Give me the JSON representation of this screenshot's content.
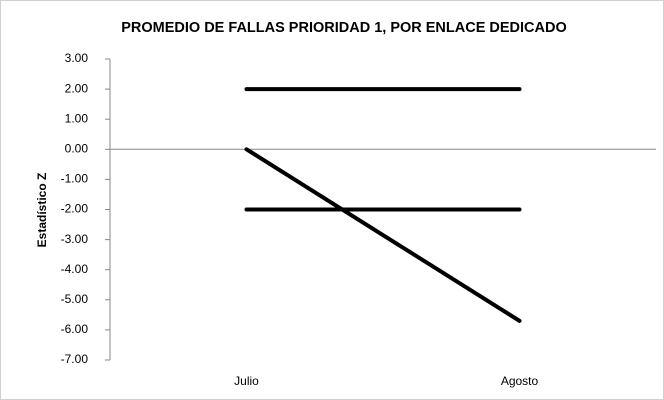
{
  "chart_data": {
    "type": "line",
    "title": "PROMEDIO DE FALLAS PRIORIDAD 1, POR ENLACE DEDICADO",
    "y_label": "Estadístico Z",
    "categories": [
      "Julio",
      "Agosto"
    ],
    "series": [
      {
        "color": "#000000",
        "values": [
          2,
          2
        ]
      },
      {
        "color": "#000000",
        "values": [
          -2,
          -2
        ]
      },
      {
        "color": "#000000",
        "values": [
          0,
          -5.7
        ]
      }
    ],
    "ylim": [
      -7,
      3
    ],
    "yticks": [
      {
        "value": 3,
        "label": "3.00"
      },
      {
        "value": 2,
        "label": "2.00"
      },
      {
        "value": 1,
        "label": "1.00"
      },
      {
        "value": 0,
        "label": "0.00"
      },
      {
        "value": -1,
        "label": "-1.00"
      },
      {
        "value": -2,
        "label": "-2.00"
      },
      {
        "value": -3,
        "label": "-3.00"
      },
      {
        "value": -4,
        "label": "-4.00"
      },
      {
        "value": -5,
        "label": "-5.00"
      },
      {
        "value": -6,
        "label": "-6.00"
      },
      {
        "value": -7,
        "label": "-7.00"
      }
    ],
    "grid": false
  }
}
